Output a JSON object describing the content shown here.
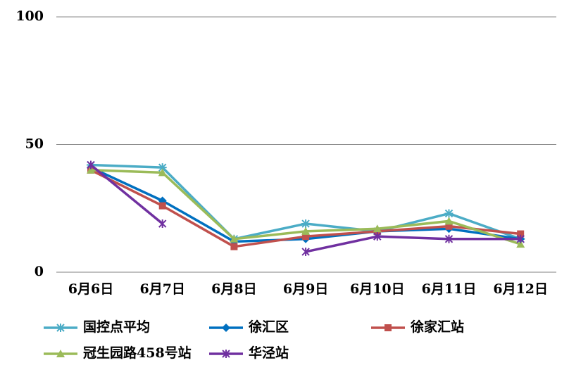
{
  "chart_data": {
    "type": "line",
    "categories": [
      "6月6日",
      "6月7日",
      "6月8日",
      "6月9日",
      "6月10日",
      "6月11日",
      "6月12日"
    ],
    "ylim": [
      0,
      100
    ],
    "yticks": [
      0,
      50,
      100
    ],
    "grid": true,
    "series": [
      {
        "name": "国控点平均",
        "color": "#4bacc6",
        "marker": "asterisk",
        "values": [
          42,
          41,
          13,
          19,
          16,
          23,
          13
        ]
      },
      {
        "name": "徐汇区",
        "color": "#0070c0",
        "marker": "diamond",
        "values": [
          41,
          28,
          12,
          13,
          16,
          17,
          13
        ]
      },
      {
        "name": "徐家汇站",
        "color": "#c0504d",
        "marker": "square",
        "values": [
          40,
          26,
          10,
          14,
          16,
          18,
          15
        ]
      },
      {
        "name": "冠生园路458号站",
        "color": "#9bbb59",
        "marker": "triangle",
        "values": [
          40,
          39,
          13,
          16,
          17,
          20,
          11
        ]
      },
      {
        "name": "华泾站",
        "color": "#7030a0",
        "marker": "star",
        "values": [
          42,
          19,
          null,
          8,
          14,
          13,
          13
        ]
      }
    ]
  }
}
